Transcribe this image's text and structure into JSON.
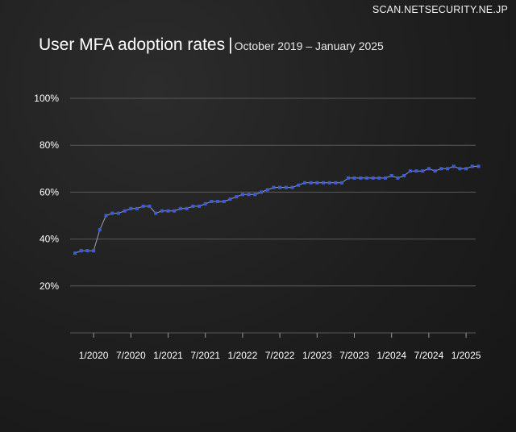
{
  "watermark": "SCAN.NETSECURITY.NE.JP",
  "chart_data": {
    "type": "line",
    "title": "User MFA adoption rates",
    "subtitle": "October 2019 – January 2025",
    "xlabel": "",
    "ylabel": "",
    "ylim": [
      0,
      100
    ],
    "yticks": [
      20,
      40,
      60,
      80,
      100
    ],
    "ytick_labels": [
      "20%",
      "40%",
      "60%",
      "80%",
      "100%"
    ],
    "xtick_labels": [
      "1/2020",
      "7/2020",
      "1/2021",
      "7/2021",
      "1/2022",
      "7/2022",
      "1/2023",
      "7/2023",
      "1/2024",
      "7/2024",
      "1/2025"
    ],
    "xtick_index": [
      3,
      9,
      15,
      21,
      27,
      33,
      39,
      45,
      51,
      57,
      63
    ],
    "grid": true,
    "colors": {
      "line": "#9aa0b4",
      "marker": "#3d5bd9",
      "grid": "#5a5a5a"
    },
    "series": [
      {
        "name": "User MFA adoption rate",
        "start": "10/2019",
        "values": [
          34,
          35,
          35,
          35,
          44,
          50,
          51,
          51,
          52,
          53,
          53,
          54,
          54,
          51,
          52,
          52,
          52,
          53,
          53,
          54,
          54,
          55,
          56,
          56,
          56,
          57,
          58,
          59,
          59,
          59,
          60,
          61,
          62,
          62,
          62,
          62,
          63,
          64,
          64,
          64,
          64,
          64,
          64,
          64,
          66,
          66,
          66,
          66,
          66,
          66,
          66,
          67,
          66,
          67,
          69,
          69,
          69,
          70,
          69,
          70,
          70,
          71,
          70,
          70,
          71,
          71
        ]
      }
    ]
  }
}
